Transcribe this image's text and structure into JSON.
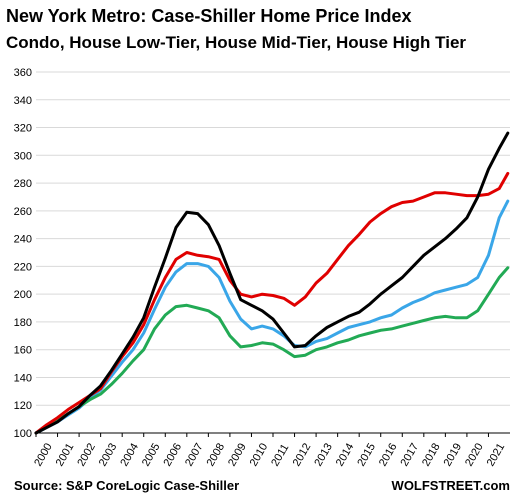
{
  "chart_data": {
    "type": "line",
    "title": "New York Metro: Case-Shiller Home Price Index",
    "subtitle_parts": [
      {
        "text": "Condo",
        "color": "#e00000"
      },
      {
        "text": ", ",
        "color": "#000000"
      },
      {
        "text": "House Low-Tier",
        "color": "#000000"
      },
      {
        "text": ", ",
        "color": "#000000"
      },
      {
        "text": "House Mid-Tier",
        "color": "#3aa6e8"
      },
      {
        "text": ", ",
        "color": "#000000"
      },
      {
        "text": "House High Tier",
        "color": "#22aa55"
      }
    ],
    "source": "Source: S&P CoreLogic Case-Shiller",
    "brand": "WOLFSTREET.com",
    "xlabel": "",
    "ylabel": "",
    "x_ticks": [
      2000,
      2001,
      2002,
      2003,
      2004,
      2005,
      2006,
      2007,
      2008,
      2009,
      2010,
      2011,
      2012,
      2013,
      2014,
      2015,
      2016,
      2017,
      2018,
      2019,
      2020,
      2021
    ],
    "xlim": [
      2000,
      2022.0
    ],
    "y_ticks": [
      100,
      120,
      140,
      160,
      180,
      200,
      220,
      240,
      260,
      280,
      300,
      320,
      340,
      360
    ],
    "ylim": [
      100,
      360
    ],
    "grid": true,
    "series": [
      {
        "name": "House Mid-Tier",
        "color": "#3aa6e8",
        "x": [
          2000,
          2000.5,
          2001,
          2001.5,
          2002,
          2002.5,
          2003,
          2003.5,
          2004,
          2004.5,
          2005,
          2005.5,
          2006,
          2006.5,
          2007,
          2007.5,
          2008,
          2008.5,
          2009,
          2009.5,
          2010,
          2010.5,
          2011,
          2011.5,
          2012,
          2012.5,
          2013,
          2013.5,
          2014,
          2014.5,
          2015,
          2015.5,
          2016,
          2016.5,
          2017,
          2017.5,
          2018,
          2018.5,
          2019,
          2019.5,
          2020,
          2020.5,
          2021,
          2021.5,
          2021.9
        ],
        "y": [
          100,
          104,
          108,
          113,
          118,
          125,
          131,
          141,
          151,
          160,
          172,
          189,
          205,
          216,
          222,
          222,
          220,
          212,
          195,
          182,
          175,
          177,
          175,
          170,
          163,
          162,
          166,
          168,
          172,
          176,
          178,
          180,
          183,
          185,
          190,
          194,
          197,
          201,
          203,
          205,
          207,
          212,
          228,
          255,
          267
        ]
      },
      {
        "name": "House High Tier",
        "color": "#22aa55",
        "x": [
          2000,
          2000.5,
          2001,
          2001.5,
          2002,
          2002.5,
          2003,
          2003.5,
          2004,
          2004.5,
          2005,
          2005.5,
          2006,
          2006.5,
          2007,
          2007.5,
          2008,
          2008.5,
          2009,
          2009.5,
          2010,
          2010.5,
          2011,
          2011.5,
          2012,
          2012.5,
          2013,
          2013.5,
          2014,
          2014.5,
          2015,
          2015.5,
          2016,
          2016.5,
          2017,
          2017.5,
          2018,
          2018.5,
          2019,
          2019.5,
          2020,
          2020.5,
          2021,
          2021.5,
          2021.9
        ],
        "y": [
          100,
          105,
          109,
          114,
          119,
          124,
          128,
          135,
          143,
          152,
          160,
          175,
          185,
          191,
          192,
          190,
          188,
          183,
          170,
          162,
          163,
          165,
          164,
          160,
          155,
          156,
          160,
          162,
          165,
          167,
          170,
          172,
          174,
          175,
          177,
          179,
          181,
          183,
          184,
          183,
          183,
          188,
          200,
          212,
          219
        ]
      },
      {
        "name": "Condo",
        "color": "#e00000",
        "x": [
          2000,
          2000.5,
          2001,
          2001.5,
          2002,
          2002.5,
          2003,
          2003.5,
          2004,
          2004.5,
          2005,
          2005.5,
          2006,
          2006.5,
          2007,
          2007.5,
          2008,
          2008.5,
          2009,
          2009.5,
          2010,
          2010.5,
          2011,
          2011.5,
          2012,
          2012.5,
          2013,
          2013.5,
          2014,
          2014.5,
          2015,
          2015.5,
          2016,
          2016.5,
          2017,
          2017.5,
          2018,
          2018.5,
          2019,
          2019.5,
          2020,
          2020.5,
          2021,
          2021.5,
          2021.9
        ],
        "y": [
          100,
          106,
          111,
          117,
          122,
          127,
          132,
          144,
          155,
          165,
          178,
          196,
          212,
          225,
          230,
          228,
          227,
          225,
          210,
          200,
          198,
          200,
          199,
          197,
          192,
          198,
          208,
          215,
          225,
          235,
          243,
          252,
          258,
          263,
          266,
          267,
          270,
          273,
          273,
          272,
          271,
          271,
          272,
          276,
          287
        ]
      },
      {
        "name": "House Low-Tier",
        "color": "#000000",
        "x": [
          2000,
          2000.5,
          2001,
          2001.5,
          2002,
          2002.5,
          2003,
          2003.5,
          2004,
          2004.5,
          2005,
          2005.5,
          2006,
          2006.5,
          2007,
          2007.5,
          2008,
          2008.5,
          2009,
          2009.5,
          2010,
          2010.5,
          2011,
          2011.5,
          2012,
          2012.5,
          2013,
          2013.5,
          2014,
          2014.5,
          2015,
          2015.5,
          2016,
          2016.5,
          2017,
          2017.5,
          2018,
          2018.5,
          2019,
          2019.5,
          2020,
          2020.5,
          2021,
          2021.5,
          2021.9
        ],
        "y": [
          100,
          104,
          108,
          114,
          119,
          127,
          134,
          145,
          157,
          169,
          183,
          205,
          226,
          248,
          259,
          258,
          250,
          235,
          215,
          196,
          192,
          188,
          182,
          172,
          162,
          163,
          170,
          176,
          180,
          184,
          187,
          193,
          200,
          206,
          212,
          220,
          228,
          234,
          240,
          247,
          255,
          270,
          290,
          305,
          316
        ]
      }
    ]
  }
}
